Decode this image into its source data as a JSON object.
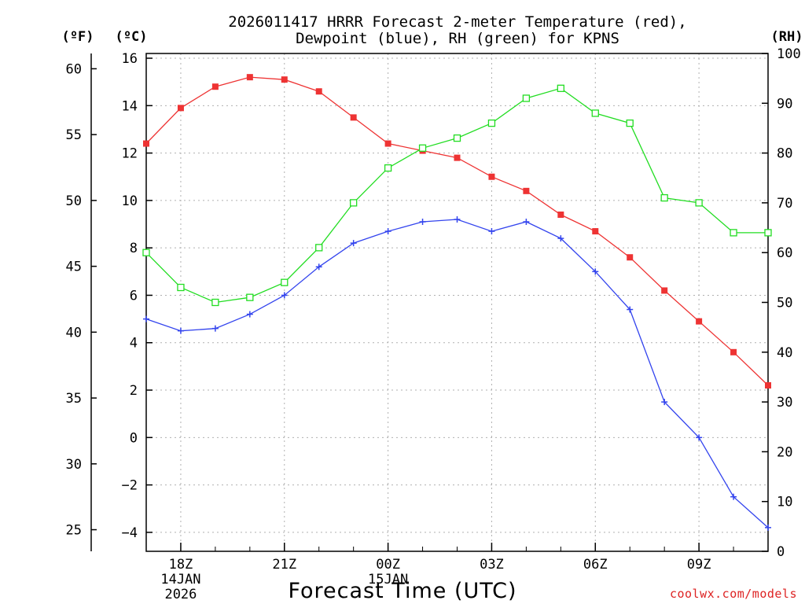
{
  "chart_data": {
    "type": "line",
    "title": "2026011417 HRRR Forecast 2-meter Temperature (red),",
    "subtitle": "Dewpoint (blue), RH (green) for KPNS",
    "xlabel": "Forecast Time (UTC)",
    "credit": "coolwx.com/models",
    "x_hours": [
      17,
      18,
      19,
      20,
      21,
      22,
      23,
      24,
      25,
      26,
      27,
      28,
      29,
      30,
      31,
      32,
      33,
      34,
      35
    ],
    "x_ticks": [
      {
        "hour": 18,
        "label": "18Z",
        "date": "14JAN",
        "year": "2026"
      },
      {
        "hour": 21,
        "label": "21Z"
      },
      {
        "hour": 24,
        "label": "00Z",
        "date": "15JAN"
      },
      {
        "hour": 27,
        "label": "03Z"
      },
      {
        "hour": 30,
        "label": "06Z"
      },
      {
        "hour": 33,
        "label": "09Z"
      }
    ],
    "axes": {
      "fahrenheit": {
        "unit_label": "(ºF)",
        "ticks": [
          "60",
          "55",
          "50",
          "45",
          "40",
          "35",
          "30",
          "25"
        ],
        "tick_values": [
          60,
          55,
          50,
          45,
          40,
          35,
          30,
          25
        ]
      },
      "celsius": {
        "unit_label": "(ºC)",
        "range": [
          -4.8,
          16.2
        ],
        "ticks": [
          "16",
          "14",
          "12",
          "10",
          "8",
          "6",
          "4",
          "2",
          "0",
          "−2",
          "−4"
        ],
        "tick_values": [
          16,
          14,
          12,
          10,
          8,
          6,
          4,
          2,
          0,
          -2,
          -4
        ]
      },
      "rh": {
        "unit_label": "(RH)",
        "range": [
          0,
          100
        ],
        "ticks": [
          "100",
          "90",
          "80",
          "70",
          "60",
          "50",
          "40",
          "30",
          "20",
          "10",
          "0"
        ],
        "tick_values": [
          100,
          90,
          80,
          70,
          60,
          50,
          40,
          30,
          20,
          10,
          0
        ]
      }
    },
    "series": [
      {
        "name": "Temperature",
        "color": "#ee3333",
        "marker": "filled-square",
        "axis": "celsius",
        "values": [
          12.4,
          13.9,
          14.8,
          15.2,
          15.1,
          14.6,
          13.5,
          12.4,
          12.1,
          11.8,
          11.0,
          10.4,
          9.4,
          8.7,
          7.6,
          6.2,
          4.9,
          3.6,
          2.2
        ]
      },
      {
        "name": "Dewpoint",
        "color": "#3344ee",
        "marker": "plus",
        "axis": "celsius",
        "values": [
          5.0,
          4.5,
          4.6,
          5.2,
          6.0,
          7.2,
          8.2,
          8.7,
          9.1,
          9.2,
          8.7,
          9.1,
          8.4,
          7.0,
          5.4,
          1.5,
          0.0,
          -2.5,
          -3.8
        ]
      },
      {
        "name": "RH",
        "color": "#22dd22",
        "marker": "open-square",
        "axis": "rh",
        "values": [
          60,
          53,
          50,
          51,
          54,
          61,
          70,
          77,
          81,
          83,
          86,
          91,
          93,
          88,
          86,
          71,
          70,
          64,
          64
        ]
      }
    ]
  }
}
